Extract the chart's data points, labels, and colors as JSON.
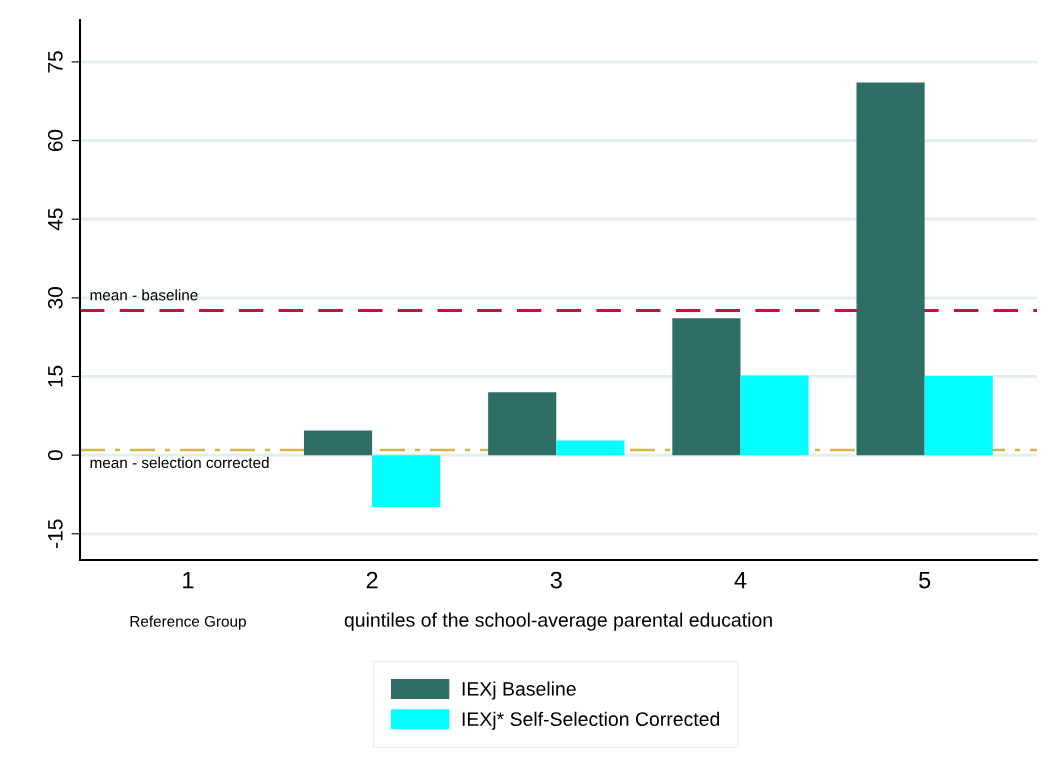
{
  "chart_data": {
    "type": "bar",
    "categories": [
      "1",
      "2",
      "3",
      "4",
      "5"
    ],
    "series": [
      {
        "name": "IEXj Baseline",
        "color": "#2e6e66",
        "values": [
          null,
          4.7,
          12.0,
          26.1,
          71.1
        ]
      },
      {
        "name": "IEXj* Self-Selection Corrected",
        "color": "#00ffff",
        "values": [
          null,
          -9.9,
          2.8,
          15.2,
          15.1
        ]
      }
    ],
    "xlabel": "quintiles of the school-average parental education",
    "annotations": [
      "Reference Group"
    ],
    "ylim": [
      -20,
      83
    ],
    "yticks": [
      -15,
      0,
      15,
      30,
      45,
      60,
      75
    ],
    "ref_lines": [
      {
        "axis": "y",
        "value": 27.6,
        "label": "mean - baseline",
        "color": "#c8103c",
        "line_style": "dashed"
      },
      {
        "axis": "y",
        "value": 1.0,
        "label": "mean - selection corrected",
        "color": "#d4b44a",
        "line_style": "dashdot"
      }
    ],
    "grid": "y",
    "legend": "bottom"
  }
}
